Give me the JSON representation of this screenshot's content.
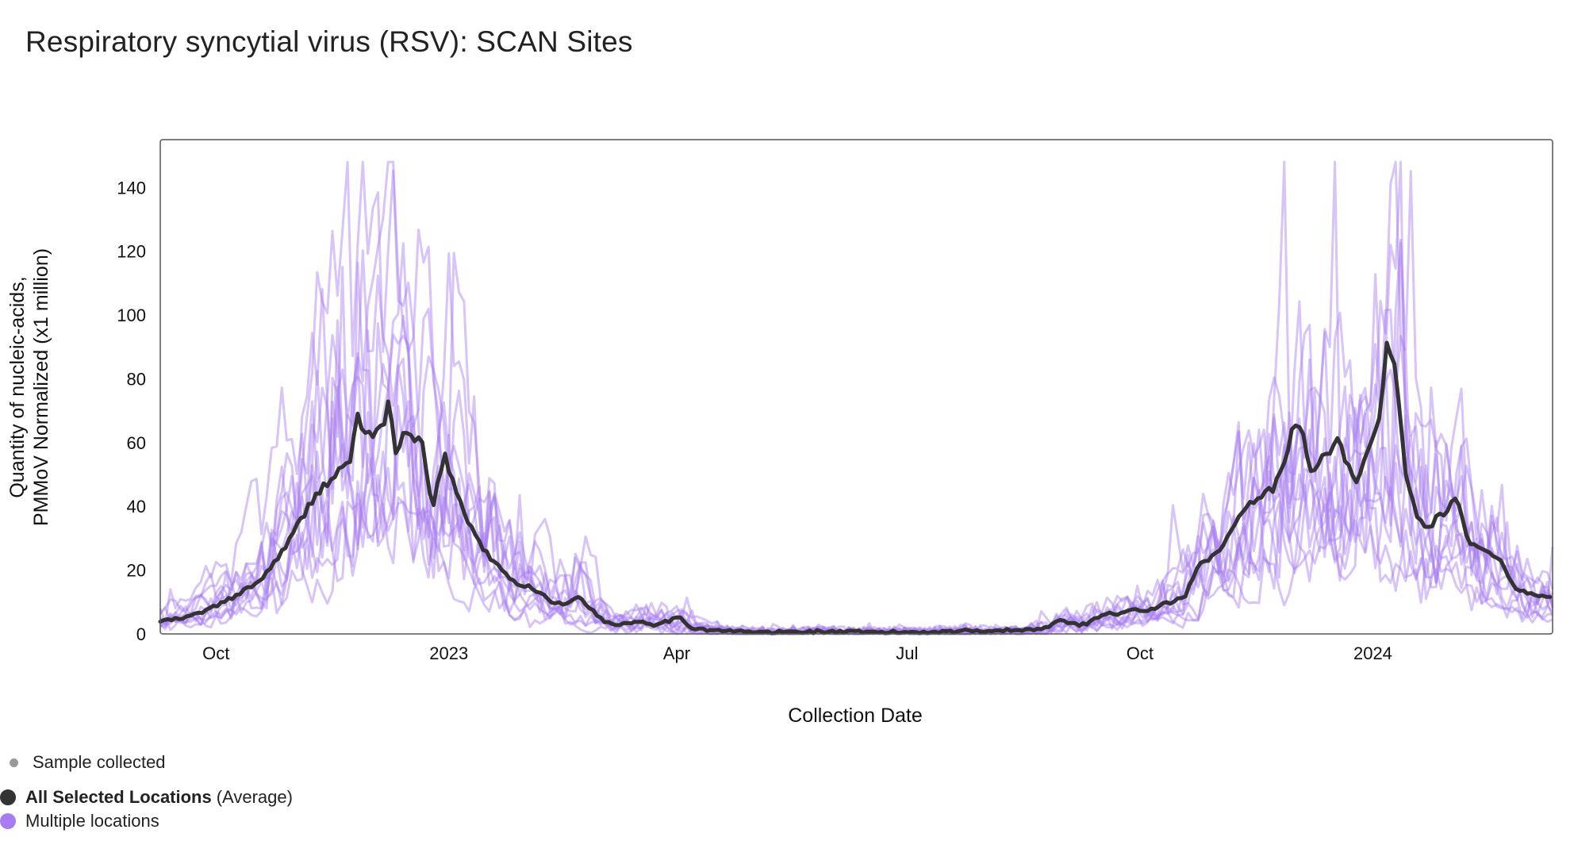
{
  "title": "Respiratory syncytial virus (RSV): SCAN Sites",
  "chart_data": {
    "type": "line",
    "title": "Respiratory syncytial virus (RSV): SCAN Sites",
    "xlabel": "Collection Date",
    "ylabel_line1": "Quantity of nucleic-acids,",
    "ylabel_line2": "PMMoV Normalized (x1 million)",
    "ylim": [
      0,
      155
    ],
    "yticks": [
      0,
      20,
      40,
      60,
      80,
      100,
      120,
      140
    ],
    "xrange_days": [
      0,
      550
    ],
    "xticks": [
      {
        "label": "Oct",
        "day": 22
      },
      {
        "label": "2023",
        "day": 114
      },
      {
        "label": "Apr",
        "day": 204
      },
      {
        "label": "Jul",
        "day": 295
      },
      {
        "label": "Oct",
        "day": 387
      },
      {
        "label": "2024",
        "day": 479
      }
    ],
    "series": [
      {
        "name": "All Selected Locations (Average)",
        "color": "#333333",
        "points": [
          [
            0,
            4
          ],
          [
            10,
            5
          ],
          [
            20,
            8
          ],
          [
            30,
            12
          ],
          [
            40,
            17
          ],
          [
            50,
            28
          ],
          [
            55,
            35
          ],
          [
            60,
            42
          ],
          [
            65,
            47
          ],
          [
            70,
            50
          ],
          [
            75,
            55
          ],
          [
            78,
            68
          ],
          [
            82,
            62
          ],
          [
            88,
            64
          ],
          [
            90,
            72
          ],
          [
            93,
            58
          ],
          [
            97,
            63
          ],
          [
            100,
            60
          ],
          [
            103,
            62
          ],
          [
            106,
            45
          ],
          [
            108,
            40
          ],
          [
            112,
            57
          ],
          [
            116,
            47
          ],
          [
            120,
            38
          ],
          [
            125,
            30
          ],
          [
            130,
            24
          ],
          [
            135,
            20
          ],
          [
            140,
            16
          ],
          [
            145,
            15
          ],
          [
            150,
            13
          ],
          [
            155,
            10
          ],
          [
            160,
            9
          ],
          [
            165,
            12
          ],
          [
            170,
            8
          ],
          [
            175,
            4
          ],
          [
            180,
            3
          ],
          [
            190,
            4
          ],
          [
            195,
            3
          ],
          [
            200,
            4
          ],
          [
            205,
            5
          ],
          [
            210,
            2
          ],
          [
            220,
            1
          ],
          [
            240,
            0.5
          ],
          [
            260,
            0.8
          ],
          [
            280,
            0.5
          ],
          [
            300,
            0.6
          ],
          [
            320,
            1
          ],
          [
            340,
            1.2
          ],
          [
            350,
            1.8
          ],
          [
            355,
            5
          ],
          [
            360,
            3
          ],
          [
            365,
            3
          ],
          [
            370,
            5
          ],
          [
            375,
            7
          ],
          [
            380,
            6
          ],
          [
            385,
            8
          ],
          [
            390,
            7
          ],
          [
            395,
            9
          ],
          [
            400,
            10
          ],
          [
            405,
            12
          ],
          [
            410,
            22
          ],
          [
            415,
            24
          ],
          [
            420,
            28
          ],
          [
            425,
            35
          ],
          [
            430,
            40
          ],
          [
            435,
            43
          ],
          [
            440,
            46
          ],
          [
            445,
            55
          ],
          [
            448,
            67
          ],
          [
            452,
            62
          ],
          [
            455,
            48
          ],
          [
            458,
            55
          ],
          [
            462,
            58
          ],
          [
            465,
            60
          ],
          [
            470,
            53
          ],
          [
            473,
            47
          ],
          [
            478,
            60
          ],
          [
            481,
            65
          ],
          [
            485,
            95
          ],
          [
            488,
            80
          ],
          [
            492,
            50
          ],
          [
            496,
            38
          ],
          [
            500,
            32
          ],
          [
            504,
            36
          ],
          [
            508,
            38
          ],
          [
            512,
            43
          ],
          [
            516,
            30
          ],
          [
            520,
            27
          ],
          [
            525,
            25
          ],
          [
            530,
            23
          ],
          [
            535,
            14
          ],
          [
            540,
            13
          ],
          [
            545,
            12
          ],
          [
            550,
            11
          ]
        ]
      },
      {
        "name": "Multiple locations",
        "color": "#a77cf0",
        "site_peaks": [
          {
            "season1": 140,
            "season2": 140
          },
          {
            "season1": 128,
            "season2": 126
          },
          {
            "season1": 110,
            "season2": 112
          },
          {
            "season1": 96,
            "season2": 122
          },
          {
            "season1": 88,
            "season2": 100
          },
          {
            "season1": 80,
            "season2": 105
          },
          {
            "season1": 75,
            "season2": 90
          },
          {
            "season1": 68,
            "season2": 83
          },
          {
            "season1": 62,
            "season2": 75
          },
          {
            "season1": 55,
            "season2": 65
          },
          {
            "season1": 48,
            "season2": 58
          },
          {
            "season1": 44,
            "season2": 50
          }
        ]
      }
    ]
  },
  "legend": {
    "sample_collected": "Sample collected",
    "average_bold": "All Selected Locations",
    "average_rest": "(Average)",
    "multiple_locations": "Multiple locations"
  },
  "colors": {
    "average": "#333333",
    "sites": "#a77cf0",
    "sample_dot": "#9a9a9a"
  }
}
